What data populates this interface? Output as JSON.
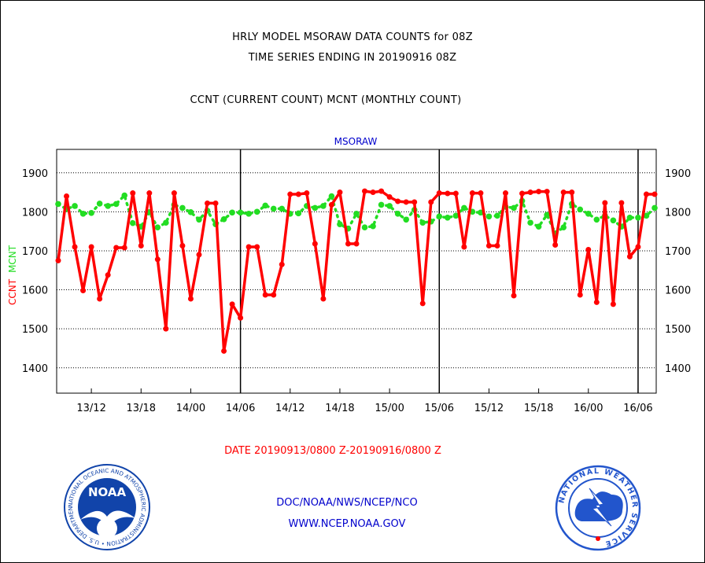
{
  "header": {
    "line1": "HRLY MODEL MSORAW DATA COUNTS for 08Z",
    "line2": "TIME SERIES ENDING IN 20190916 08Z",
    "line3": "CCNT (CURRENT COUNT) MCNT (MONTHLY COUNT)"
  },
  "footer": {
    "date_range": "DATE 20190913/0800 Z-20190916/0800 Z",
    "credit1": "DOC/NOAA/NWS/NCEP/NCO",
    "credit2": "WWW.NCEP.NOAA.GOV"
  },
  "logos": {
    "noaa_text": "NOAA",
    "noaa_ring": "NATIONAL OCEANIC AND ATMOSPHERIC ADMINISTRATION • U.S. DEPARTMENT OF COMMERCE •",
    "nws_ring": "NATIONAL WEATHER SERVICE"
  },
  "colors": {
    "current": "#ff0000",
    "monthly": "#22dd22",
    "title": "#0000cc",
    "noaa_blue": "#1144aa",
    "nws_blue": "#2255cc"
  },
  "chart_data": {
    "type": "line",
    "title": "MSORAW",
    "ylabel_parts": [
      "CCNT",
      "MCNT"
    ],
    "ylim": [
      1335,
      1960
    ],
    "yticks": [
      1400,
      1500,
      1600,
      1700,
      1800,
      1900
    ],
    "xticks": [
      "13/12",
      "13/18",
      "14/00",
      "14/06",
      "14/12",
      "14/18",
      "15/00",
      "15/06",
      "15/12",
      "15/18",
      "16/00",
      "16/06"
    ],
    "grid": true,
    "series": [
      {
        "name": "CCNT",
        "values": [
          1675,
          1840,
          1710,
          1598,
          1710,
          1577,
          1638,
          1708,
          1708,
          1848,
          1713,
          1848,
          1678,
          1500,
          1848,
          1713,
          1577,
          1690,
          1822,
          1822,
          1443,
          1563,
          1528,
          1710,
          1710,
          1587,
          1587,
          1665,
          1845,
          1845,
          1848,
          1718,
          1577,
          1818,
          1850,
          1718,
          1718,
          1853,
          1850,
          1853,
          1838,
          1827,
          1825,
          1825,
          1565,
          1825,
          1848,
          1847,
          1847,
          1710,
          1848,
          1848,
          1713,
          1713,
          1848,
          1585,
          1847,
          1850,
          1852,
          1852,
          1715,
          1850,
          1850,
          1587,
          1703,
          1568,
          1823,
          1563,
          1823,
          1685,
          1710,
          1845,
          1845
        ]
      },
      {
        "name": "MCNT",
        "values": [
          1820,
          1807,
          1815,
          1795,
          1797,
          1821,
          1815,
          1820,
          1842,
          1771,
          1762,
          1799,
          1760,
          1772,
          1818,
          1810,
          1799,
          1780,
          1803,
          1768,
          1781,
          1798,
          1798,
          1795,
          1800,
          1816,
          1808,
          1808,
          1795,
          1796,
          1815,
          1810,
          1815,
          1840,
          1768,
          1757,
          1795,
          1760,
          1763,
          1818,
          1815,
          1795,
          1780,
          1805,
          1772,
          1775,
          1788,
          1785,
          1790,
          1810,
          1800,
          1798,
          1788,
          1790,
          1813,
          1810,
          1828,
          1772,
          1762,
          1792,
          1745,
          1760,
          1820,
          1806,
          1795,
          1780,
          1790,
          1778,
          1762,
          1785,
          1785,
          1790,
          1810
        ]
      }
    ]
  }
}
